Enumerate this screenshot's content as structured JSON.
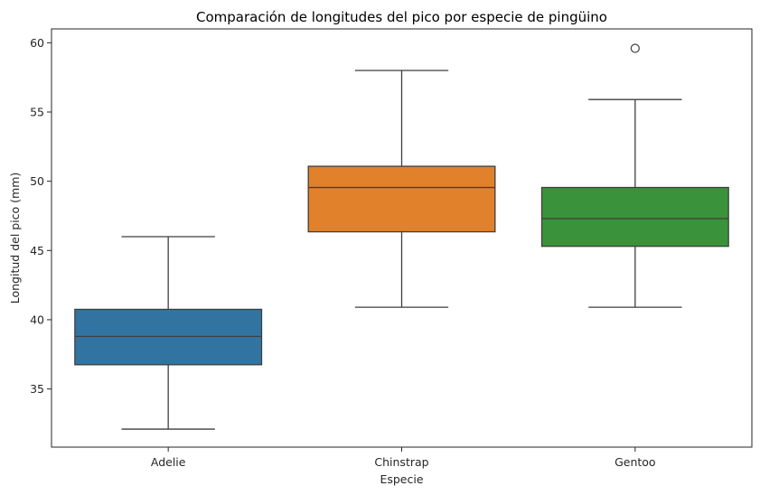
{
  "chart_data": {
    "type": "box",
    "title": "Comparación de longitudes del pico por especie de pingüino",
    "xlabel": "Especie",
    "ylabel": "Longitud del pico (mm)",
    "ylim": [
      30.8,
      61.0
    ],
    "yticks": [
      35,
      40,
      45,
      50,
      55,
      60
    ],
    "grid": false,
    "legend": "none",
    "categories": [
      "Adelie",
      "Chinstrap",
      "Gentoo"
    ],
    "boxes": [
      {
        "category": "Adelie",
        "color": "#3274a1",
        "whisker_low": 32.1,
        "q1": 36.75,
        "median": 38.8,
        "q3": 40.75,
        "whisker_high": 46.0,
        "outliers": []
      },
      {
        "category": "Chinstrap",
        "color": "#e1812c",
        "whisker_low": 40.9,
        "q1": 46.35,
        "median": 49.55,
        "q3": 51.08,
        "whisker_high": 58.0,
        "outliers": []
      },
      {
        "category": "Gentoo",
        "color": "#3a923a",
        "whisker_low": 40.9,
        "q1": 45.3,
        "median": 47.3,
        "q3": 49.55,
        "whisker_high": 55.9,
        "outliers": [
          59.6
        ]
      }
    ]
  }
}
